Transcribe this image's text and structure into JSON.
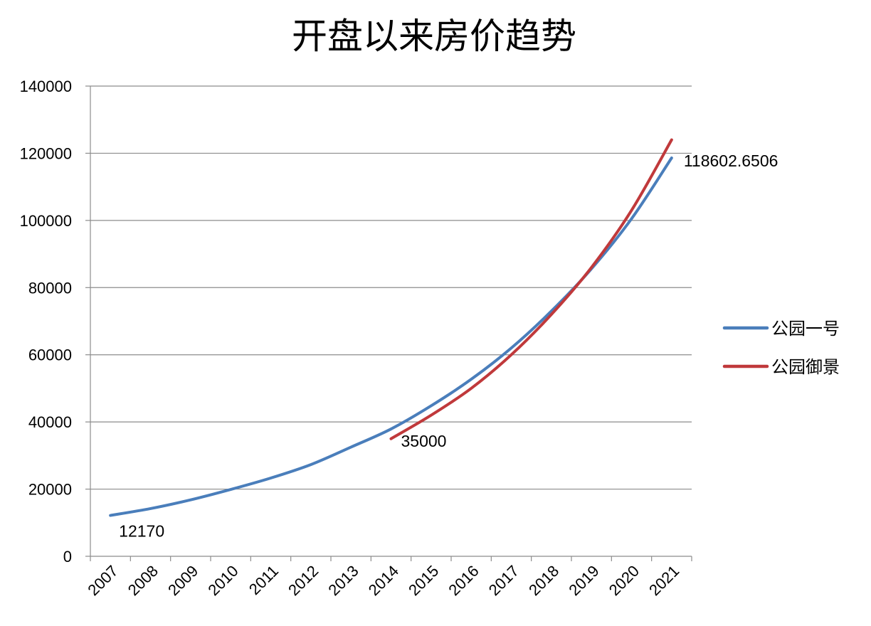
{
  "chart_data": {
    "type": "line",
    "title": "开盘以来房价趋势",
    "xlabel": "",
    "ylabel": "",
    "categories": [
      "2007",
      "2008",
      "2009",
      "2010",
      "2011",
      "2012",
      "2013",
      "2014",
      "2015",
      "2016",
      "2017",
      "2018",
      "2019",
      "2020",
      "2021"
    ],
    "y_ticks": [
      "0",
      "20000",
      "40000",
      "60000",
      "80000",
      "100000",
      "120000",
      "140000"
    ],
    "ylim": [
      0,
      140000
    ],
    "grid": true,
    "legend_position": "right",
    "series": [
      {
        "name": "公园一号",
        "color": "#4a7ebb",
        "values": [
          12170,
          14200,
          16800,
          19900,
          23300,
          27300,
          32500,
          37900,
          44800,
          52700,
          62000,
          73000,
          85600,
          100500,
          118602.6506
        ]
      },
      {
        "name": "公园御景",
        "color": "#c0393b",
        "values": [
          null,
          null,
          null,
          null,
          null,
          null,
          null,
          35000,
          42000,
          50000,
          60000,
          72000,
          86000,
          103000,
          124000
        ]
      }
    ],
    "data_labels": [
      {
        "series": 0,
        "index": 0,
        "text": "12170"
      },
      {
        "series": 1,
        "index": 7,
        "text": "35000"
      },
      {
        "series": 0,
        "index": 14,
        "text": "118602.6506"
      }
    ]
  }
}
